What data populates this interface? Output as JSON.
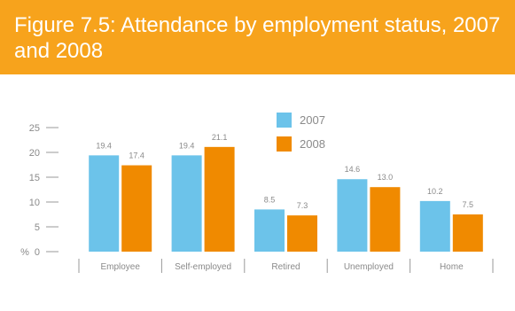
{
  "title": "Figure 7.5: Attendance by employment status, 2007 and 2008",
  "colors": {
    "header_bg": "#f7a31c",
    "series_2007": "#6cc3ea",
    "series_2008": "#f08a00",
    "axis": "#9a9a9a",
    "label": "#8a8a8a"
  },
  "chart_data": {
    "type": "bar",
    "title": "Figure 7.5: Attendance by employment status, 2007 and 2008",
    "ylabel": "%",
    "ylim": [
      0,
      25
    ],
    "yticks": [
      0,
      5,
      10,
      15,
      20,
      25
    ],
    "grid": false,
    "legend_position": "top-center",
    "categories": [
      "Employee",
      "Self-employed",
      "Retired",
      "Unemployed",
      "Home"
    ],
    "series": [
      {
        "name": "2007",
        "values": [
          19.4,
          19.4,
          8.5,
          14.6,
          10.2
        ],
        "labels": [
          "19.4",
          "19.4",
          "8.5",
          "14.6",
          "10.2"
        ]
      },
      {
        "name": "2008",
        "values": [
          17.4,
          21.1,
          7.3,
          13.0,
          7.5
        ],
        "labels": [
          "17.4",
          "21.1",
          "7.3",
          "13.0",
          "7.5"
        ]
      }
    ]
  }
}
